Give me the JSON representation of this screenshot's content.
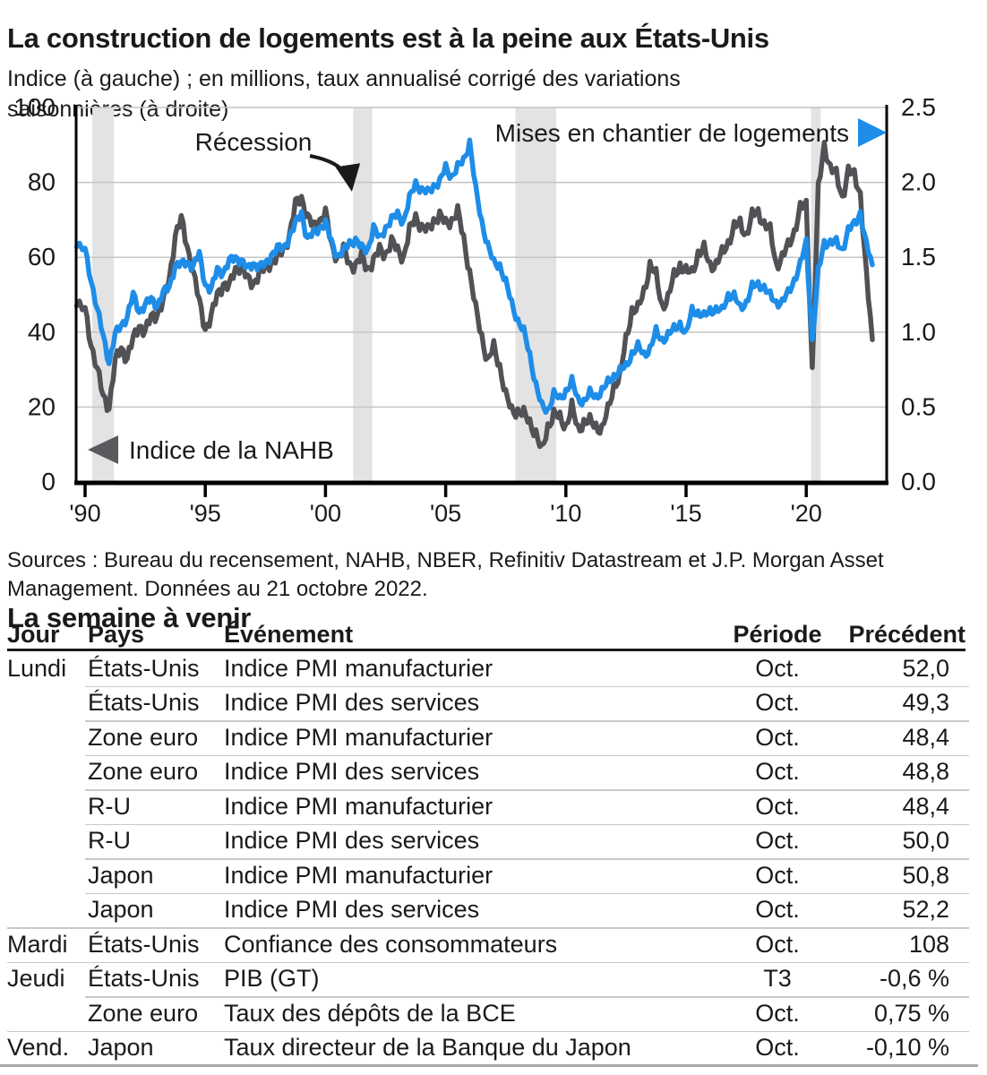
{
  "header": {
    "title": "La construction de logements est à la peine aux États-Unis",
    "subtitle": "Indice (à gauche) ; en millions, taux annualisé corrigé des variations saisonnières (à droite)"
  },
  "chart": {
    "left_axis_ticks": [
      "100",
      "80",
      "60",
      "40",
      "20",
      "0"
    ],
    "right_axis_ticks": [
      "2.5",
      "2.0",
      "1.5",
      "1.0",
      "0.5",
      "0.0"
    ],
    "x_axis_ticks": [
      "'90",
      "'95",
      "'00",
      "'05",
      "'10",
      "'15",
      "'20"
    ],
    "annotations": {
      "recession_label": "Récession",
      "blue_series_label": "Mises en chantier de logements",
      "dark_series_label": "Indice de la NAHB"
    },
    "colors": {
      "blue": "#1e8de8",
      "dark": "#515256",
      "band": "#e3e3e4",
      "grid": "#c4c4c4",
      "axis": "#000000"
    }
  },
  "chart_data": {
    "type": "line",
    "title": "La construction de logements est à la peine aux États-Unis",
    "left_ylabel": "Indice (à gauche)",
    "right_ylabel": "en millions, taux annualisé corrigé des variations saisonnières (à droite)",
    "left_ylim": [
      0,
      100
    ],
    "right_ylim": [
      0,
      2.5
    ],
    "x_ticks_years": [
      1990,
      1995,
      2000,
      2005,
      2010,
      2015,
      2020
    ],
    "recession_bands_years": [
      [
        1990.3,
        1991.2
      ],
      [
        2001.15,
        2001.95
      ],
      [
        2007.9,
        2009.6
      ],
      [
        2020.2,
        2020.6
      ]
    ],
    "x_years": [
      1989.65,
      1990.0,
      1990.25,
      1990.5,
      1990.75,
      1991.0,
      1991.25,
      1991.5,
      1991.75,
      1992.0,
      1992.25,
      1992.5,
      1992.75,
      1993.0,
      1993.25,
      1993.5,
      1993.75,
      1994.0,
      1994.25,
      1994.5,
      1994.75,
      1995.0,
      1995.25,
      1995.5,
      1995.75,
      1996.0,
      1996.25,
      1996.5,
      1996.75,
      1997.0,
      1997.25,
      1997.5,
      1997.75,
      1998.0,
      1998.25,
      1998.5,
      1998.75,
      1999.0,
      1999.25,
      1999.5,
      1999.75,
      2000.0,
      2000.25,
      2000.5,
      2000.75,
      2001.0,
      2001.25,
      2001.5,
      2001.75,
      2002.0,
      2002.25,
      2002.5,
      2002.75,
      2003.0,
      2003.25,
      2003.5,
      2003.75,
      2004.0,
      2004.25,
      2004.5,
      2004.75,
      2005.0,
      2005.25,
      2005.5,
      2005.75,
      2006.0,
      2006.25,
      2006.5,
      2006.75,
      2007.0,
      2007.25,
      2007.5,
      2007.75,
      2008.0,
      2008.25,
      2008.5,
      2008.75,
      2009.0,
      2009.25,
      2009.5,
      2009.75,
      2010.0,
      2010.25,
      2010.5,
      2010.75,
      2011.0,
      2011.25,
      2011.5,
      2011.75,
      2012.0,
      2012.25,
      2012.5,
      2012.75,
      2013.0,
      2013.25,
      2013.5,
      2013.75,
      2014.0,
      2014.25,
      2014.5,
      2014.75,
      2015.0,
      2015.25,
      2015.5,
      2015.75,
      2016.0,
      2016.25,
      2016.5,
      2016.75,
      2017.0,
      2017.25,
      2017.5,
      2017.75,
      2018.0,
      2018.25,
      2018.5,
      2018.75,
      2019.0,
      2019.25,
      2019.5,
      2019.75,
      2020.0,
      2020.25,
      2020.5,
      2020.75,
      2021.0,
      2021.25,
      2021.5,
      2021.75,
      2022.0,
      2022.25,
      2022.5,
      2022.75
    ],
    "series": [
      {
        "name": "Indice de la NAHB",
        "axis": "left",
        "color": "#515256",
        "values": [
          47,
          46,
          37,
          30,
          23,
          20,
          32,
          36,
          33,
          38,
          42,
          40,
          44,
          45,
          48,
          54,
          66,
          70,
          63,
          56,
          48,
          41,
          44,
          50,
          53,
          52,
          57,
          58,
          54,
          53,
          56,
          57,
          59,
          60,
          62,
          66,
          74,
          76,
          71,
          68,
          70,
          72,
          63,
          60,
          62,
          58,
          58,
          60,
          57,
          59,
          62,
          61,
          64,
          62,
          60,
          67,
          71,
          68,
          67,
          70,
          71,
          69,
          70,
          72,
          65,
          56,
          46,
          39,
          32,
          36,
          31,
          23,
          19,
          19,
          18,
          16,
          13,
          8,
          15,
          18,
          17,
          15,
          20,
          14,
          16,
          16,
          15,
          14,
          19,
          26,
          28,
          38,
          46,
          46,
          51,
          58,
          55,
          47,
          49,
          55,
          58,
          56,
          56,
          61,
          62,
          58,
          58,
          61,
          64,
          68,
          69,
          66,
          71,
          72,
          69,
          67,
          58,
          60,
          63,
          67,
          73,
          74,
          30,
          78,
          90,
          84,
          82,
          76,
          83,
          82,
          77,
          55,
          38
        ]
      },
      {
        "name": "Mises en chantier de logements",
        "axis": "right",
        "color": "#1e8de8",
        "values": [
          1.57,
          1.55,
          1.35,
          1.15,
          0.98,
          0.8,
          0.98,
          1.05,
          1.1,
          1.25,
          1.14,
          1.18,
          1.22,
          1.18,
          1.26,
          1.3,
          1.45,
          1.45,
          1.47,
          1.44,
          1.52,
          1.32,
          1.28,
          1.42,
          1.4,
          1.47,
          1.5,
          1.48,
          1.42,
          1.46,
          1.44,
          1.45,
          1.52,
          1.56,
          1.56,
          1.64,
          1.72,
          1.8,
          1.62,
          1.66,
          1.7,
          1.73,
          1.6,
          1.51,
          1.54,
          1.6,
          1.62,
          1.56,
          1.55,
          1.7,
          1.62,
          1.7,
          1.75,
          1.79,
          1.74,
          1.89,
          2.0,
          1.95,
          1.93,
          1.98,
          2.0,
          2.1,
          2.04,
          2.1,
          2.15,
          2.27,
          1.95,
          1.74,
          1.58,
          1.46,
          1.45,
          1.33,
          1.19,
          1.08,
          1.0,
          0.85,
          0.65,
          0.5,
          0.48,
          0.59,
          0.55,
          0.61,
          0.67,
          0.55,
          0.54,
          0.59,
          0.57,
          0.61,
          0.66,
          0.71,
          0.74,
          0.77,
          0.86,
          0.9,
          0.85,
          0.89,
          1.0,
          0.95,
          0.98,
          1.02,
          1.06,
          0.98,
          1.15,
          1.13,
          1.1,
          1.15,
          1.15,
          1.14,
          1.25,
          1.24,
          1.16,
          1.2,
          1.3,
          1.32,
          1.3,
          1.24,
          1.2,
          1.2,
          1.26,
          1.35,
          1.45,
          1.6,
          0.94,
          1.4,
          1.6,
          1.6,
          1.6,
          1.55,
          1.68,
          1.72,
          1.8,
          1.58,
          1.45
        ]
      }
    ]
  },
  "sources": "Sources : Bureau du recensement, NAHB,  NBER, Refinitiv Datastream et J.P. Morgan Asset Management. Données au 21 octobre 2022.",
  "week_ahead": {
    "title": "La semaine à venir",
    "columns": [
      "Jour",
      "Pays",
      "Événement",
      "Période",
      "Précédent"
    ],
    "rows": [
      {
        "day": "Lundi",
        "country": "États-Unis",
        "event": "Indice PMI manufacturier",
        "period": "Oct.",
        "previous": "52,0"
      },
      {
        "day": "",
        "country": "États-Unis",
        "event": "Indice PMI des services",
        "period": "Oct.",
        "previous": "49,3"
      },
      {
        "day": "",
        "country": "Zone euro",
        "event": "Indice PMI manufacturier",
        "period": "Oct.",
        "previous": "48,4"
      },
      {
        "day": "",
        "country": "Zone euro",
        "event": "Indice PMI des services",
        "period": "Oct.",
        "previous": "48,8"
      },
      {
        "day": "",
        "country": "R-U",
        "event": "Indice PMI manufacturier",
        "period": "Oct.",
        "previous": "48,4"
      },
      {
        "day": "",
        "country": "R-U",
        "event": "Indice PMI des services",
        "period": "Oct.",
        "previous": "50,0"
      },
      {
        "day": "",
        "country": "Japon",
        "event": "Indice PMI manufacturier",
        "period": "Oct.",
        "previous": "50,8"
      },
      {
        "day": "",
        "country": "Japon",
        "event": "Indice PMI des services",
        "period": "Oct.",
        "previous": "52,2"
      },
      {
        "day": "Mardi",
        "country": "États-Unis",
        "event": "Confiance des consommateurs",
        "period": "Oct.",
        "previous": "108"
      },
      {
        "day": "Jeudi",
        "country": "États-Unis",
        "event": "PIB (GT)",
        "period": "T3",
        "previous": "-0,6 %"
      },
      {
        "day": "",
        "country": "Zone euro",
        "event": "Taux des dépôts de la BCE",
        "period": "Oct.",
        "previous": "0,75 %"
      },
      {
        "day": "Vend.",
        "country": "Japon",
        "event": "Taux directeur de la Banque du Japon",
        "period": "Oct.",
        "previous": "-0,10 %"
      }
    ]
  }
}
